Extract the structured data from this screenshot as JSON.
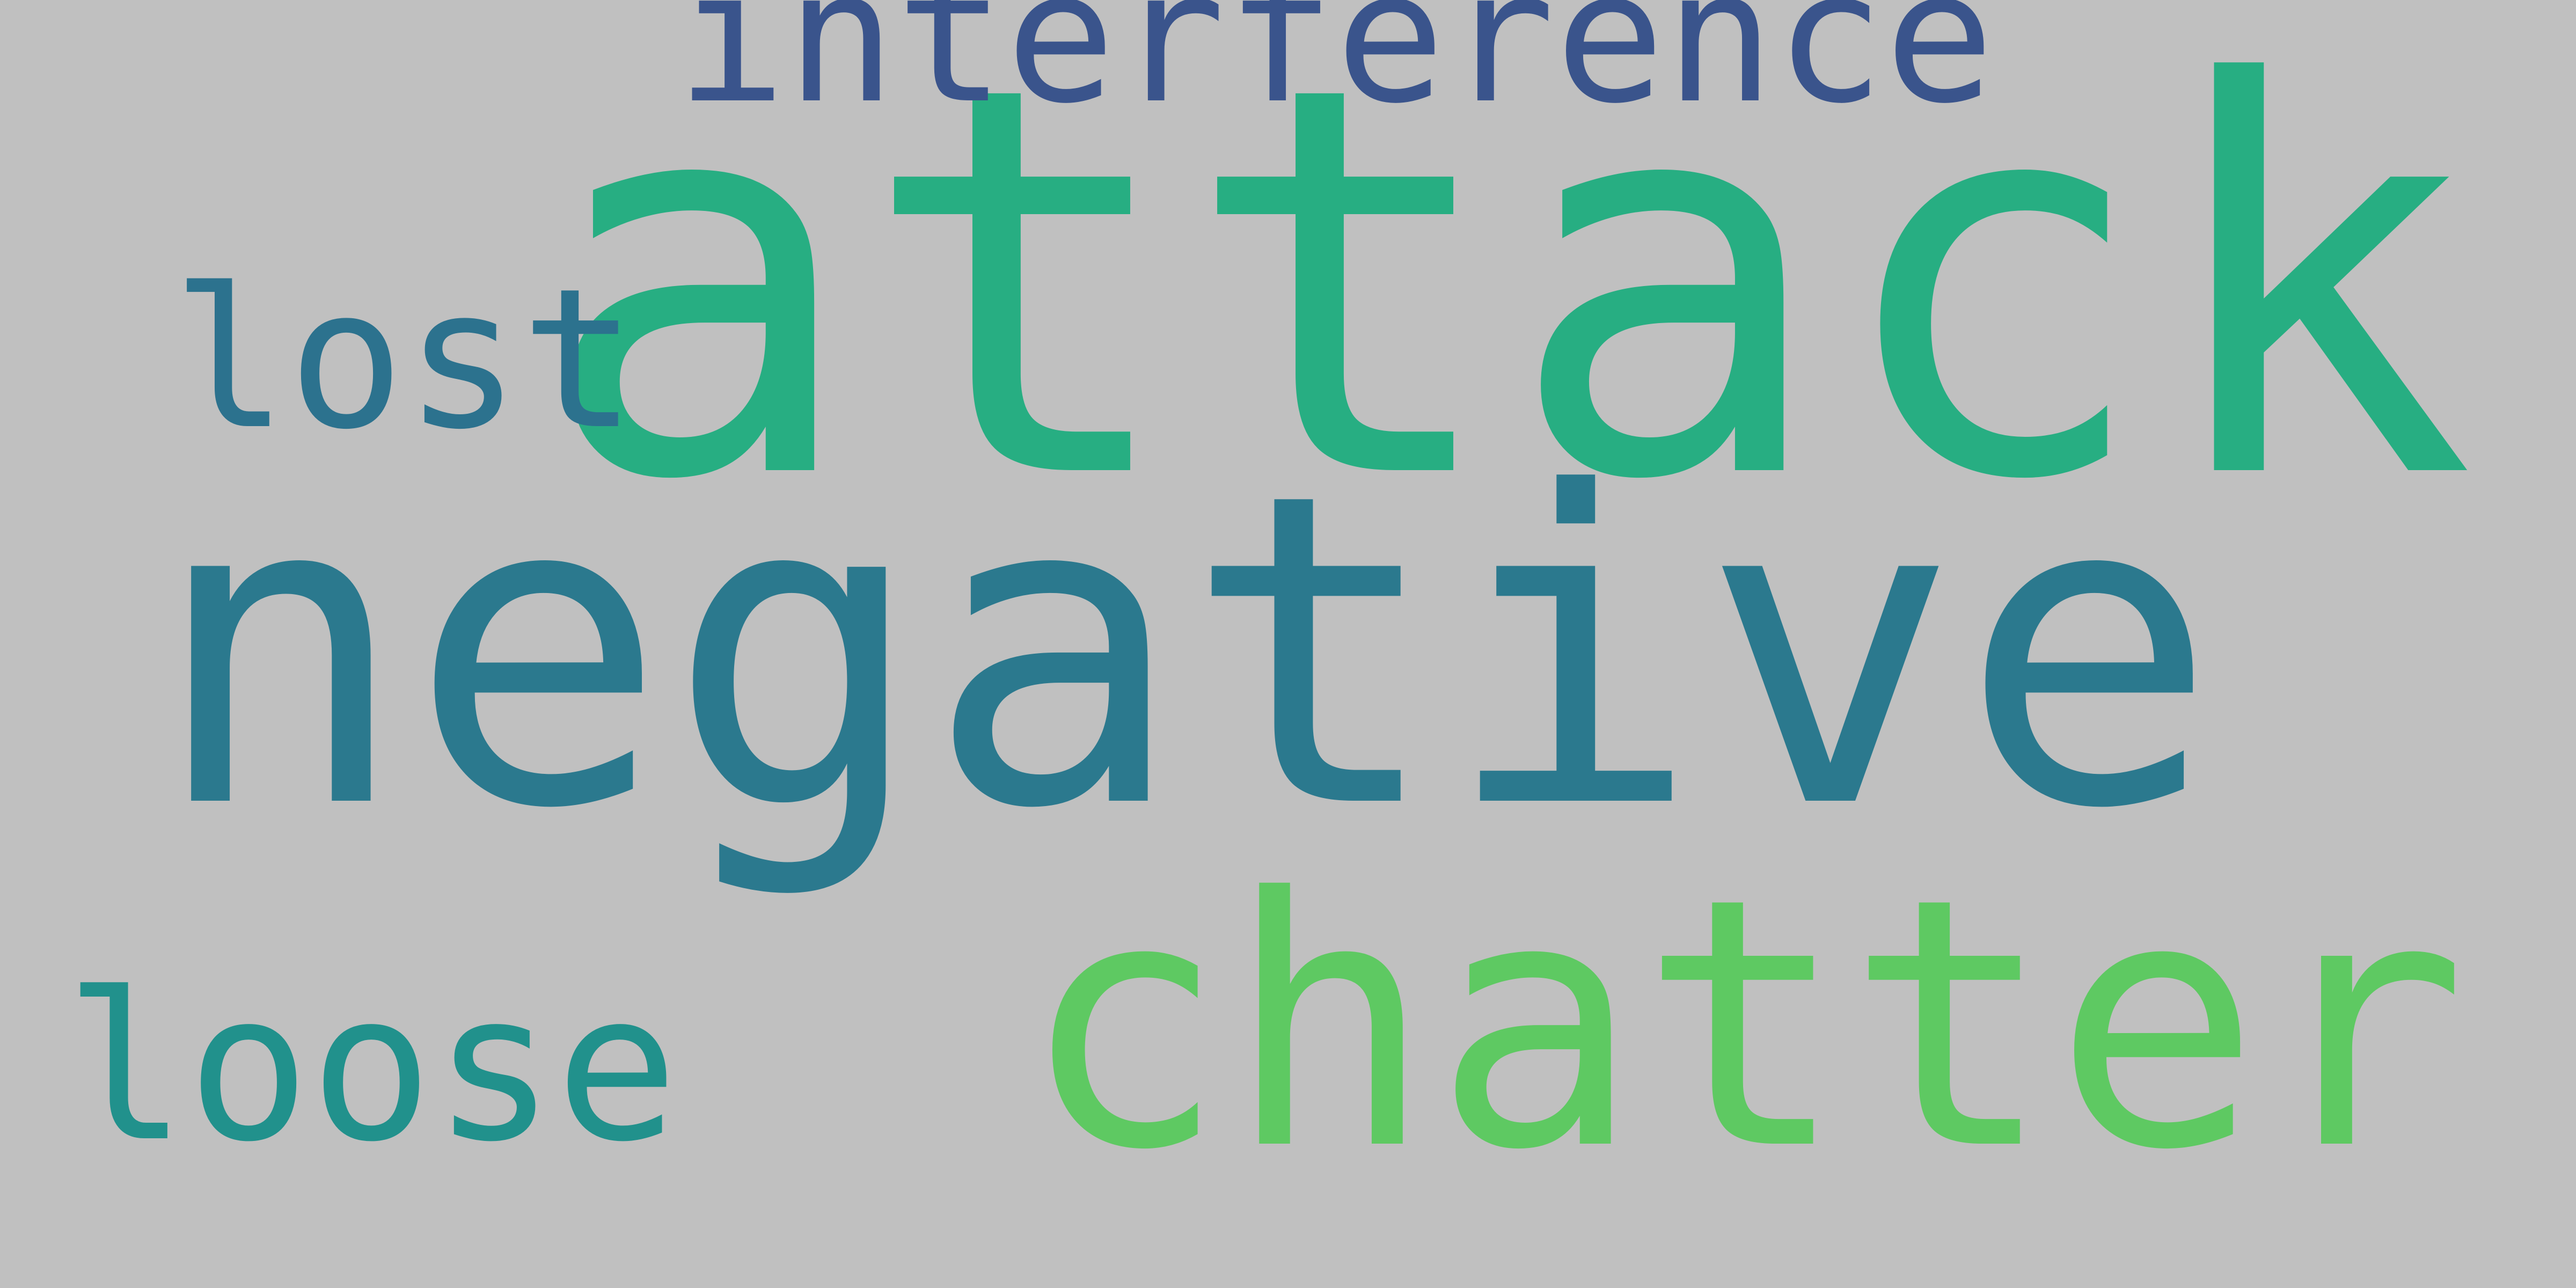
{
  "background_color": "#c0c0c0",
  "words": [
    {
      "key": "attack",
      "text": "attack",
      "color": "#27ae82"
    },
    {
      "key": "negative",
      "text": "negative",
      "color": "#2b798e"
    },
    {
      "key": "chatter",
      "text": "chatter",
      "color": "#5ec962"
    },
    {
      "key": "interference",
      "text": "interference",
      "color": "#3a548c"
    },
    {
      "key": "lost",
      "text": "lost",
      "color": "#2c728e"
    },
    {
      "key": "loose",
      "text": "loose",
      "color": "#21918c"
    }
  ]
}
